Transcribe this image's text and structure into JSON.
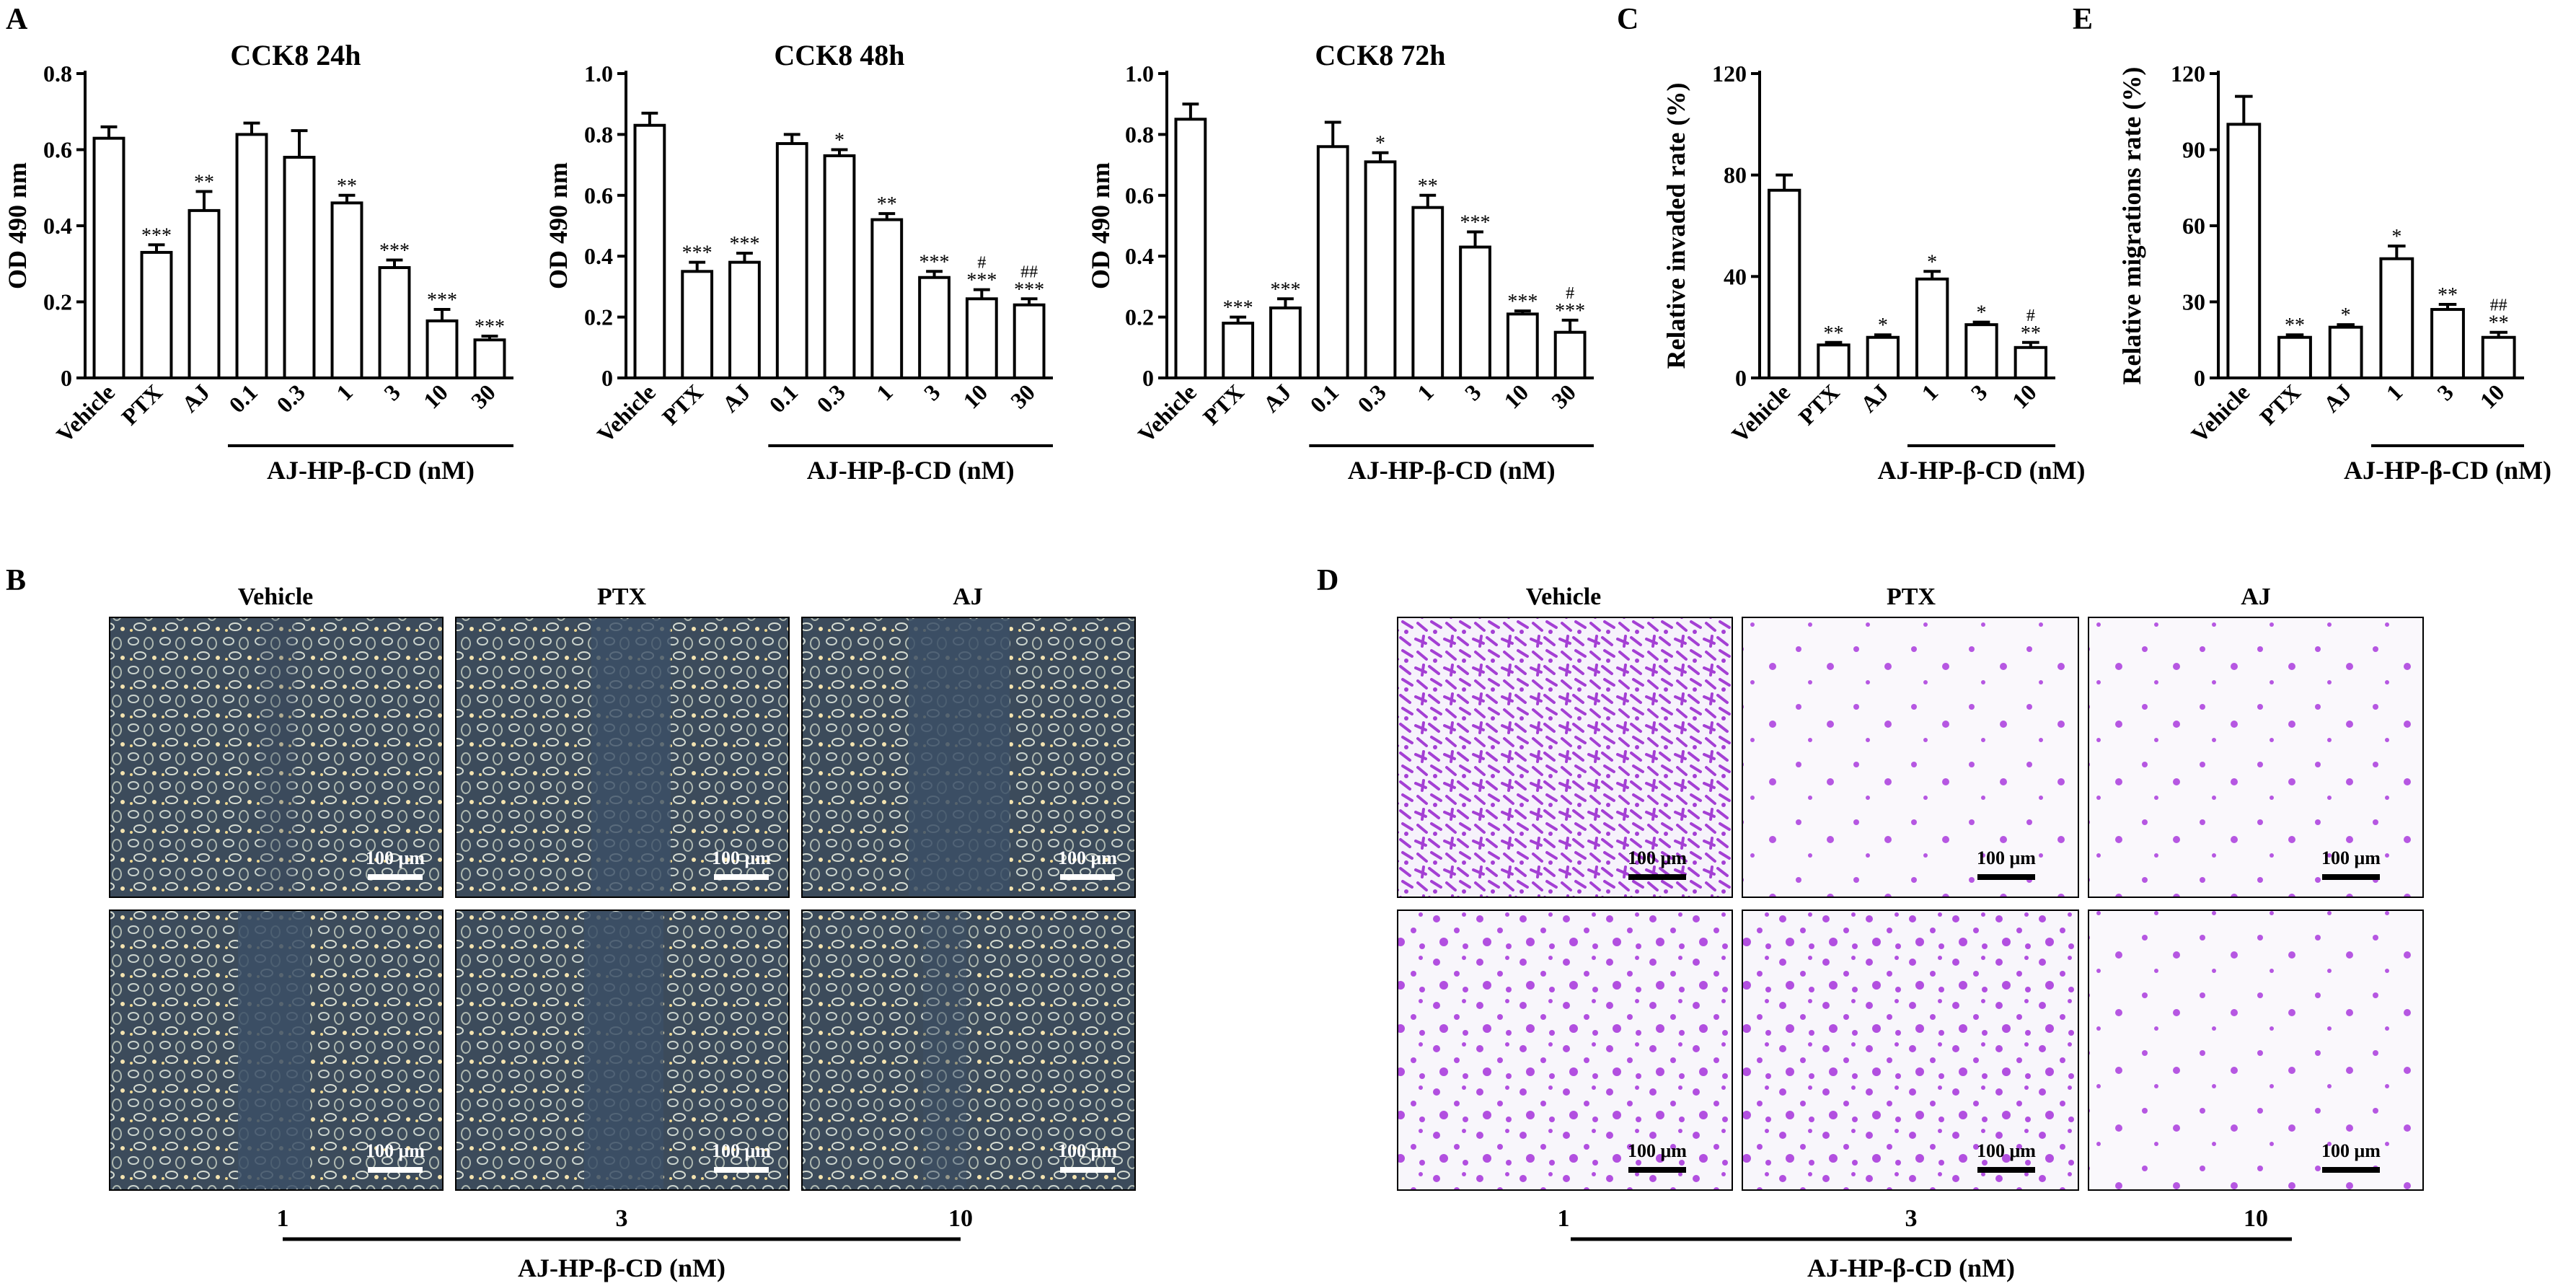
{
  "panel_labels": {
    "A": "A",
    "B": "B",
    "C": "C",
    "D": "D",
    "E": "E"
  },
  "colors": {
    "bar_fill": "#ffffff",
    "stroke": "#000000",
    "crystal_violet": "#a540d6",
    "phase_bg": "#3a4a5a"
  },
  "chart_data": [
    {
      "id": "cck24",
      "type": "bar",
      "title": "CCK8 24h",
      "ylabel": "OD 490 nm",
      "ylim": [
        0,
        0.8
      ],
      "yticks": [
        "0",
        "0.2",
        "0.4",
        "0.6",
        "0.8"
      ],
      "categories": [
        "Vehicle",
        "PTX",
        "AJ",
        "0.1",
        "0.3",
        "1",
        "3",
        "10",
        "30"
      ],
      "values": [
        0.63,
        0.33,
        0.44,
        0.64,
        0.58,
        0.46,
        0.29,
        0.15,
        0.1
      ],
      "errors": [
        0.03,
        0.02,
        0.05,
        0.03,
        0.07,
        0.02,
        0.02,
        0.03,
        0.01
      ],
      "sig": [
        "",
        "***",
        "**",
        "",
        "",
        "**",
        "***",
        "***",
        "***"
      ],
      "group_label": "AJ-HP-β-CD (nM)"
    },
    {
      "id": "cck48",
      "type": "bar",
      "title": "CCK8 48h",
      "ylabel": "OD 490 nm",
      "ylim": [
        0,
        1.0
      ],
      "yticks": [
        "0",
        "0.2",
        "0.4",
        "0.6",
        "0.8",
        "1.0"
      ],
      "categories": [
        "Vehicle",
        "PTX",
        "AJ",
        "0.1",
        "0.3",
        "1",
        "3",
        "10",
        "30"
      ],
      "values": [
        0.83,
        0.35,
        0.38,
        0.77,
        0.73,
        0.52,
        0.33,
        0.26,
        0.24
      ],
      "errors": [
        0.04,
        0.03,
        0.03,
        0.03,
        0.02,
        0.02,
        0.02,
        0.03,
        0.02
      ],
      "sig": [
        "",
        "***",
        "***",
        "",
        "*",
        "**",
        "***",
        "***",
        "***"
      ],
      "sig2": [
        "",
        "",
        "",
        "",
        "",
        "",
        "",
        "#",
        "##"
      ],
      "group_label": "AJ-HP-β-CD (nM)"
    },
    {
      "id": "cck72",
      "type": "bar",
      "title": "CCK8 72h",
      "ylabel": "OD 490 nm",
      "ylim": [
        0,
        1.0
      ],
      "yticks": [
        "0",
        "0.2",
        "0.4",
        "0.6",
        "0.8",
        "1.0"
      ],
      "categories": [
        "Vehicle",
        "PTX",
        "AJ",
        "0.1",
        "0.3",
        "1",
        "3",
        "10",
        "30"
      ],
      "values": [
        0.85,
        0.18,
        0.23,
        0.76,
        0.71,
        0.56,
        0.43,
        0.21,
        0.15
      ],
      "errors": [
        0.05,
        0.02,
        0.03,
        0.08,
        0.03,
        0.04,
        0.05,
        0.01,
        0.04
      ],
      "sig": [
        "",
        "***",
        "***",
        "",
        "*",
        "**",
        "***",
        "***",
        "***"
      ],
      "sig2": [
        "",
        "",
        "",
        "",
        "",
        "",
        "",
        "",
        "#"
      ],
      "group_label": "AJ-HP-β-CD (nM)"
    },
    {
      "id": "invade",
      "type": "bar",
      "title": "",
      "ylabel": "Relative invaded rate (%)",
      "ylim": [
        0,
        120
      ],
      "yticks": [
        "0",
        "40",
        "80",
        "120"
      ],
      "categories": [
        "Vehicle",
        "PTX",
        "AJ",
        "1",
        "3",
        "10"
      ],
      "values": [
        74,
        13,
        16,
        39,
        21,
        12
      ],
      "errors": [
        6,
        1,
        1,
        3,
        1,
        2
      ],
      "sig": [
        "",
        "**",
        "*",
        "*",
        "*",
        "**"
      ],
      "sig2": [
        "",
        "",
        "",
        "",
        "",
        "#"
      ],
      "group_label": "AJ-HP-β-CD (nM)"
    },
    {
      "id": "migrate",
      "type": "bar",
      "title": "",
      "ylabel": "Relative migrations rate (%)",
      "ylim": [
        0,
        120
      ],
      "yticks": [
        "0",
        "30",
        "60",
        "90",
        "120"
      ],
      "categories": [
        "Vehicle",
        "PTX",
        "AJ",
        "1",
        "3",
        "10"
      ],
      "values": [
        100,
        16,
        20,
        47,
        27,
        16
      ],
      "errors": [
        11,
        1,
        1,
        5,
        2,
        2
      ],
      "sig": [
        "",
        "**",
        "*",
        "*",
        "**",
        "**"
      ],
      "sig2": [
        "",
        "",
        "",
        "",
        "",
        "##"
      ],
      "group_label": "AJ-HP-β-CD (nM)"
    }
  ],
  "panel_b": {
    "col_headers": [
      "Vehicle",
      "PTX",
      "AJ"
    ],
    "scale_bar": "100 μm",
    "bottom_labels": [
      "1",
      "3",
      "10"
    ],
    "group_label": "AJ-HP-β-CD (nM)"
  },
  "panel_d": {
    "col_headers": [
      "Vehicle",
      "PTX",
      "AJ"
    ],
    "scale_bar": "100 μm",
    "bottom_labels": [
      "1",
      "3",
      "10"
    ],
    "group_label": "AJ-HP-β-CD (nM)"
  }
}
